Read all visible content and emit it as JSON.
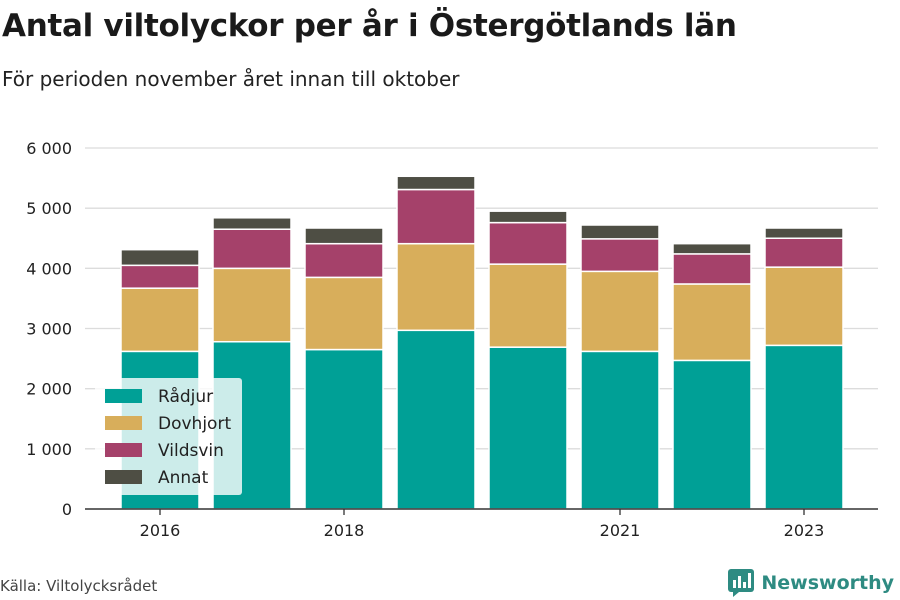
{
  "header": {
    "title": "Antal viltolyckor per år i Östergötlands län",
    "subtitle": "För perioden november året innan till oktober"
  },
  "footer": {
    "source": "Källa: Viltolycksrådet",
    "brand": "Newsworthy",
    "brand_color": "#2e8b82"
  },
  "chart_data": {
    "type": "bar",
    "stacked": true,
    "categories": [
      "2016",
      "2017",
      "2018",
      "2019",
      "2020",
      "2021",
      "2022",
      "2023"
    ],
    "x_tick_labels": [
      "2016",
      "",
      "2018",
      "",
      "",
      "2021",
      "",
      "2023"
    ],
    "y_ticks": [
      0,
      1000,
      2000,
      3000,
      4000,
      5000,
      6000
    ],
    "y_tick_labels": [
      "0",
      "1 000",
      "2 000",
      "3 000",
      "4 000",
      "5 000",
      "6 000"
    ],
    "ylim": [
      0,
      6000
    ],
    "grid": true,
    "legend_position": "bottom-left",
    "series": [
      {
        "name": "Rådjur",
        "color": "#00a096",
        "values": [
          2620,
          2780,
          2650,
          2970,
          2690,
          2620,
          2470,
          2720
        ]
      },
      {
        "name": "Dovhjort",
        "color": "#d8ae5b",
        "values": [
          1050,
          1220,
          1200,
          1440,
          1380,
          1330,
          1270,
          1300
        ]
      },
      {
        "name": "Vildsvin",
        "color": "#a5416a",
        "values": [
          380,
          650,
          560,
          900,
          690,
          540,
          500,
          480
        ]
      },
      {
        "name": "Annat",
        "color": "#4e4e44",
        "values": [
          260,
          190,
          260,
          220,
          190,
          230,
          170,
          170
        ]
      }
    ]
  }
}
